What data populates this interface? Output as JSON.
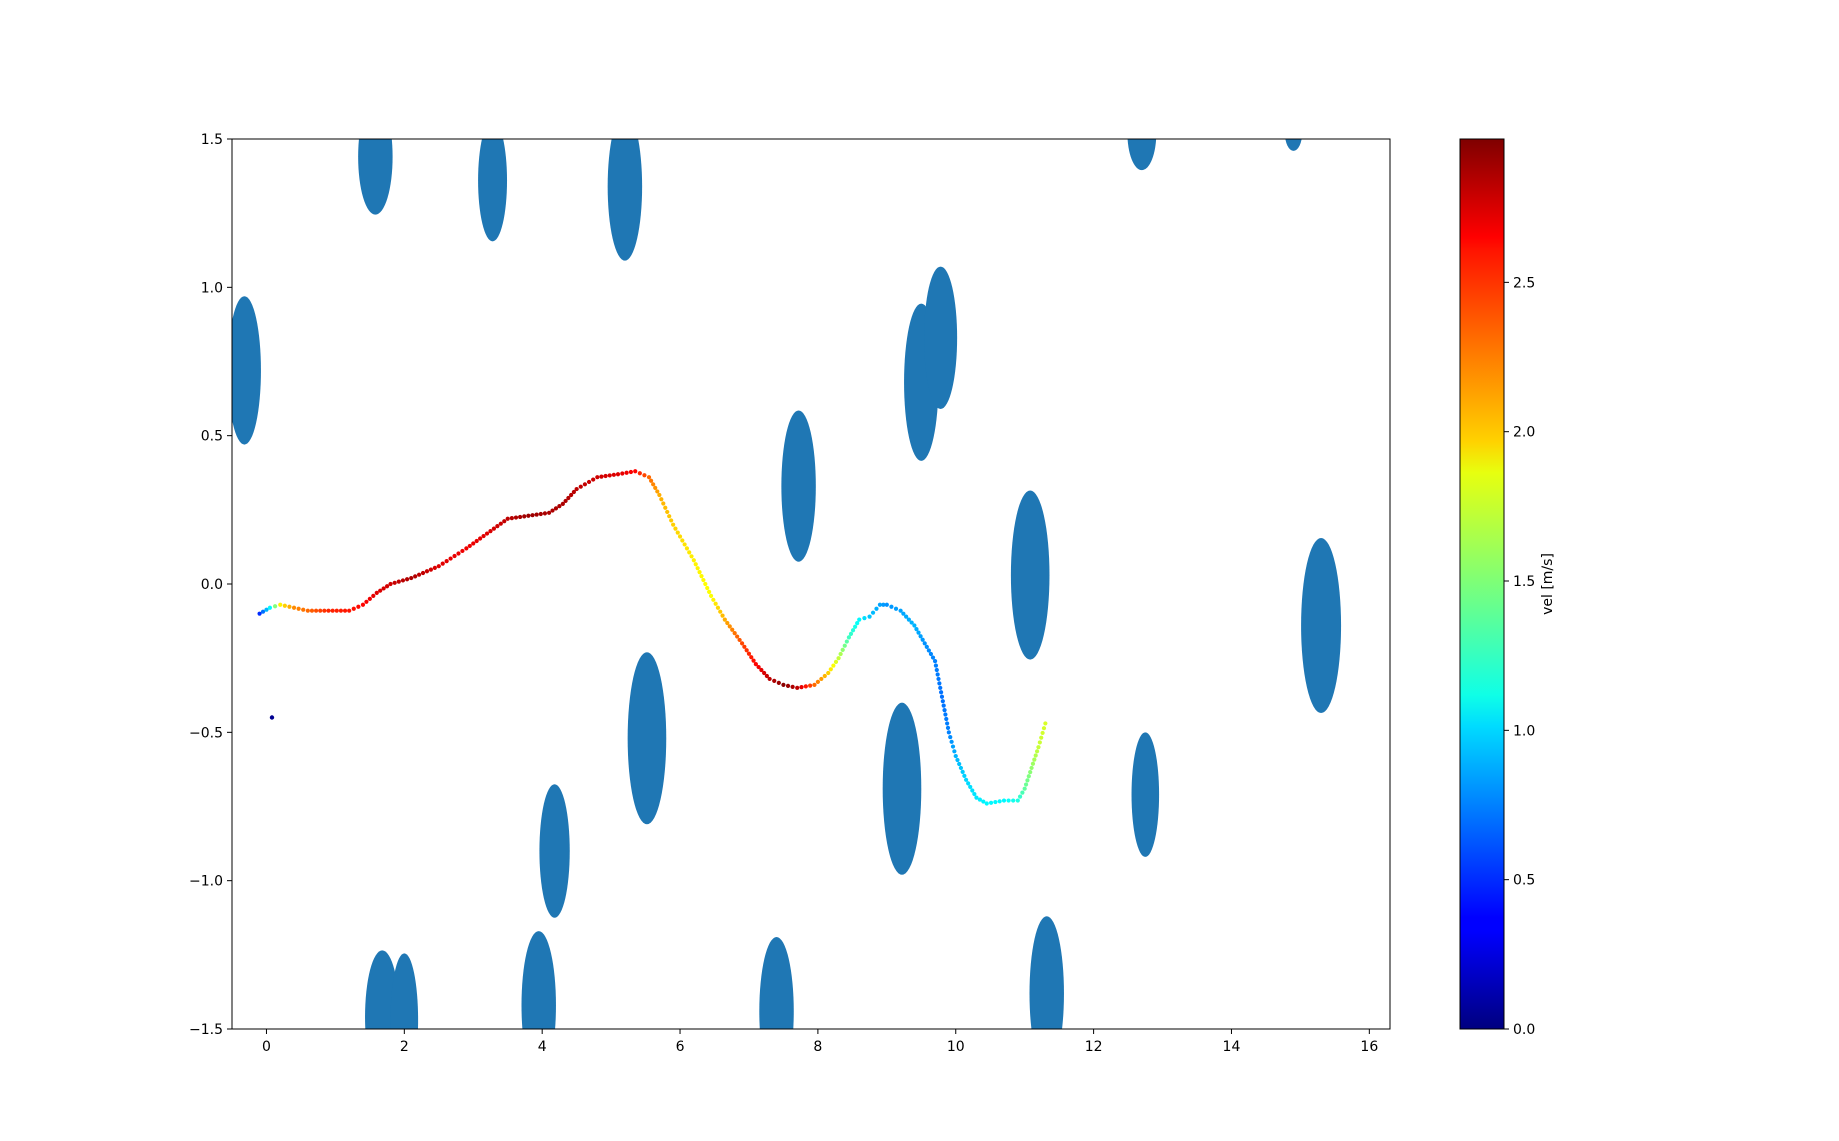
{
  "chart_data": {
    "type": "scatter",
    "title": "",
    "xlabel": "",
    "ylabel": "",
    "xlim": [
      -0.5,
      16.3
    ],
    "ylim": [
      -1.5,
      1.5
    ],
    "x_ticks": [
      0,
      2,
      4,
      6,
      8,
      10,
      12,
      14,
      16
    ],
    "y_ticks": [
      -1.5,
      -1.0,
      -0.5,
      0.0,
      0.5,
      1.0,
      1.5
    ],
    "x_tick_labels": [
      "0",
      "2",
      "4",
      "6",
      "8",
      "10",
      "12",
      "14",
      "16"
    ],
    "y_tick_labels": [
      "−1.5",
      "−1.0",
      "−0.5",
      "0.0",
      "0.5",
      "1.0",
      "1.5"
    ],
    "grid": false,
    "obstacle_color": "#1f77b4",
    "obstacles": [
      {
        "cx": -0.32,
        "cy": 0.72,
        "w": 0.48,
        "h": 0.5
      },
      {
        "cx": 1.58,
        "cy": 1.44,
        "w": 0.5,
        "h": 0.39
      },
      {
        "cx": 3.28,
        "cy": 1.36,
        "w": 0.42,
        "h": 0.41
      },
      {
        "cx": 5.2,
        "cy": 1.34,
        "w": 0.5,
        "h": 0.5
      },
      {
        "cx": 12.7,
        "cy": 1.52,
        "w": 0.42,
        "h": 0.25
      },
      {
        "cx": 14.9,
        "cy": 1.52,
        "w": 0.25,
        "h": 0.12
      },
      {
        "cx": 9.5,
        "cy": 0.68,
        "w": 0.5,
        "h": 0.53
      },
      {
        "cx": 9.78,
        "cy": 0.83,
        "w": 0.48,
        "h": 0.48
      },
      {
        "cx": 7.72,
        "cy": 0.33,
        "w": 0.5,
        "h": 0.51
      },
      {
        "cx": 11.08,
        "cy": 0.03,
        "w": 0.56,
        "h": 0.57
      },
      {
        "cx": 15.3,
        "cy": -0.14,
        "w": 0.58,
        "h": 0.59
      },
      {
        "cx": 5.52,
        "cy": -0.52,
        "w": 0.56,
        "h": 0.58
      },
      {
        "cx": 4.18,
        "cy": -0.9,
        "w": 0.44,
        "h": 0.45
      },
      {
        "cx": 9.22,
        "cy": -0.69,
        "w": 0.56,
        "h": 0.58
      },
      {
        "cx": 12.75,
        "cy": -0.71,
        "w": 0.4,
        "h": 0.42
      },
      {
        "cx": 1.68,
        "cy": -1.46,
        "w": 0.5,
        "h": 0.45
      },
      {
        "cx": 2.0,
        "cy": -1.47,
        "w": 0.4,
        "h": 0.45
      },
      {
        "cx": 3.95,
        "cy": -1.42,
        "w": 0.5,
        "h": 0.5
      },
      {
        "cx": 7.4,
        "cy": -1.44,
        "w": 0.5,
        "h": 0.5
      },
      {
        "cx": 11.32,
        "cy": -1.38,
        "w": 0.5,
        "h": 0.52
      }
    ],
    "series": [
      {
        "points": [
          [
            -0.1,
            -0.1,
            0.5
          ],
          [
            0.05,
            -0.08,
            1.1
          ],
          [
            0.2,
            -0.07,
            1.9
          ],
          [
            0.4,
            -0.08,
            2.2
          ],
          [
            0.6,
            -0.09,
            2.3
          ],
          [
            0.9,
            -0.09,
            2.5
          ],
          [
            1.2,
            -0.09,
            2.55
          ],
          [
            1.4,
            -0.07,
            2.6
          ],
          [
            1.6,
            -0.03,
            2.7
          ],
          [
            1.8,
            0.0,
            2.75
          ],
          [
            2.1,
            0.02,
            2.85
          ],
          [
            2.5,
            0.06,
            2.7
          ],
          [
            2.9,
            0.12,
            2.65
          ],
          [
            3.2,
            0.17,
            2.7
          ],
          [
            3.5,
            0.22,
            2.8
          ],
          [
            3.8,
            0.23,
            2.9
          ],
          [
            4.1,
            0.24,
            2.85
          ],
          [
            4.3,
            0.27,
            2.85
          ],
          [
            4.5,
            0.32,
            2.8
          ],
          [
            4.8,
            0.36,
            2.75
          ],
          [
            5.1,
            0.37,
            2.7
          ],
          [
            5.35,
            0.38,
            2.6
          ],
          [
            5.55,
            0.36,
            2.3
          ],
          [
            5.7,
            0.3,
            2.1
          ],
          [
            5.9,
            0.2,
            2.0
          ],
          [
            6.2,
            0.08,
            1.9
          ],
          [
            6.45,
            -0.04,
            1.85
          ],
          [
            6.65,
            -0.12,
            2.1
          ],
          [
            6.9,
            -0.2,
            2.4
          ],
          [
            7.1,
            -0.27,
            2.6
          ],
          [
            7.3,
            -0.32,
            2.8
          ],
          [
            7.5,
            -0.34,
            2.95
          ],
          [
            7.7,
            -0.35,
            2.8
          ],
          [
            7.95,
            -0.34,
            2.3
          ],
          [
            8.15,
            -0.3,
            2.0
          ],
          [
            8.3,
            -0.25,
            1.7
          ],
          [
            8.45,
            -0.18,
            1.3
          ],
          [
            8.6,
            -0.12,
            1.1
          ],
          [
            8.75,
            -0.11,
            0.95
          ],
          [
            8.9,
            -0.07,
            0.85
          ],
          [
            9.0,
            -0.07,
            0.8
          ],
          [
            9.2,
            -0.09,
            0.85
          ],
          [
            9.4,
            -0.14,
            0.9
          ],
          [
            9.55,
            -0.2,
            0.8
          ],
          [
            9.7,
            -0.26,
            0.75
          ],
          [
            9.8,
            -0.38,
            0.7
          ],
          [
            9.9,
            -0.5,
            0.75
          ],
          [
            10.0,
            -0.58,
            0.9
          ],
          [
            10.15,
            -0.66,
            1.0
          ],
          [
            10.3,
            -0.72,
            1.05
          ],
          [
            10.45,
            -0.74,
            1.1
          ],
          [
            10.7,
            -0.73,
            1.1
          ],
          [
            10.9,
            -0.73,
            1.2
          ],
          [
            11.0,
            -0.69,
            1.4
          ],
          [
            11.1,
            -0.62,
            1.55
          ],
          [
            11.2,
            -0.55,
            1.7
          ],
          [
            11.3,
            -0.47,
            1.75
          ]
        ]
      },
      {
        "points": [
          [
            0.08,
            -0.45,
            0.05
          ]
        ]
      }
    ],
    "colorbar": {
      "label": "vel [m/s]",
      "min": 0.0,
      "max": 2.98,
      "colormap": "jet",
      "ticks": [
        0.0,
        0.5,
        1.0,
        1.5,
        2.0,
        2.5
      ],
      "tick_labels": [
        "0.0",
        "0.5",
        "1.0",
        "1.5",
        "2.0",
        "2.5"
      ]
    }
  }
}
